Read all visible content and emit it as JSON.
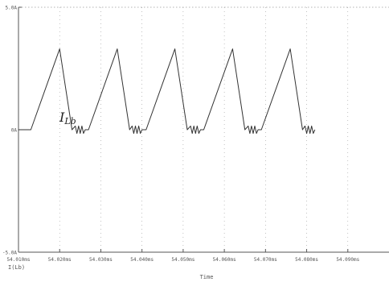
{
  "chart_data": {
    "type": "line",
    "title": "",
    "xlabel": "Time",
    "ylabel": "",
    "xlim": [
      54.01,
      54.1
    ],
    "ylim": [
      -5.0,
      5.0
    ],
    "x_ticks": [
      54.01,
      54.02,
      54.03,
      54.04,
      54.05,
      54.06,
      54.07,
      54.08,
      54.09
    ],
    "x_tick_labels": [
      "54.010ms",
      "54.020ms",
      "54.030ms",
      "54.040ms",
      "54.050ms",
      "54.060ms",
      "54.070ms",
      "54.080ms",
      "54.090ms"
    ],
    "y_ticks": [
      5.0,
      0,
      -5.0
    ],
    "y_tick_labels": [
      "5.0A",
      "0A",
      "-5.0A"
    ],
    "legend": "I(Lb)",
    "annotation": "I",
    "annotation_subscript": "Lb",
    "grid": true,
    "colors": {
      "trace": "#333333",
      "axis": "#555555",
      "grid": "#9a9a9a",
      "text": "#555555"
    },
    "series": [
      {
        "name": "I(Lb)",
        "x": [
          54.01,
          54.0125,
          54.013,
          54.02,
          54.023,
          54.0238,
          54.0242,
          54.0246,
          54.025,
          54.0254,
          54.0258,
          54.0262,
          54.027,
          54.034,
          54.037,
          54.0376,
          54.038,
          54.0384,
          54.0388,
          54.0392,
          54.0396,
          54.04,
          54.041,
          54.048,
          54.051,
          54.0518,
          54.0522,
          54.0526,
          54.053,
          54.0534,
          54.0538,
          54.0542,
          54.055,
          54.062,
          54.065,
          54.0658,
          54.0662,
          54.0666,
          54.067,
          54.0674,
          54.0678,
          54.0682,
          54.069,
          54.076,
          54.079,
          54.0796,
          54.08,
          54.0804,
          54.0808,
          54.0812,
          54.0816,
          54.082
        ],
        "y": [
          0.0,
          0.0,
          0.0,
          3.3,
          0.0,
          0.15,
          -0.15,
          0.15,
          -0.15,
          0.15,
          -0.15,
          0.0,
          0.0,
          3.3,
          0.0,
          0.15,
          -0.15,
          0.15,
          -0.15,
          0.15,
          -0.15,
          0.0,
          0.0,
          3.3,
          0.0,
          0.15,
          -0.15,
          0.15,
          -0.15,
          0.15,
          -0.15,
          0.0,
          0.0,
          3.3,
          0.0,
          0.15,
          -0.15,
          0.15,
          -0.15,
          0.15,
          -0.15,
          0.0,
          0.0,
          3.3,
          0.0,
          0.15,
          -0.15,
          0.15,
          -0.15,
          0.15,
          -0.15,
          0.0
        ]
      }
    ]
  }
}
